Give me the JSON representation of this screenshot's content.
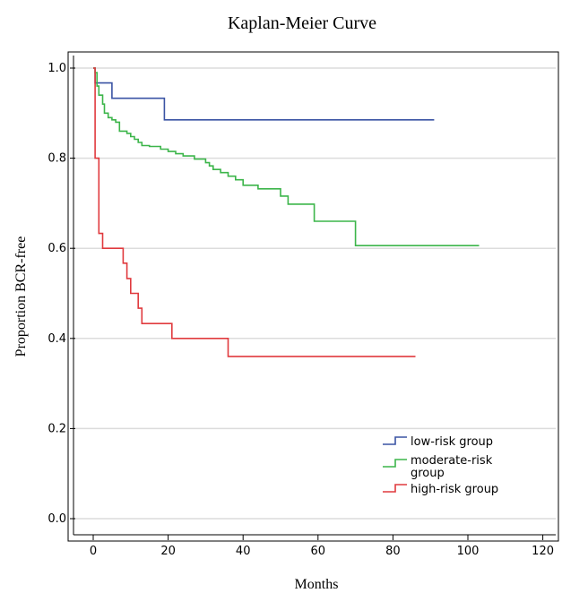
{
  "chart_data": {
    "type": "line",
    "title": "Kaplan-Meier Curve",
    "xlabel": "Months",
    "ylabel": "Proportion BCR-free",
    "xlim": [
      -5,
      125
    ],
    "ylim": [
      -0.05,
      1.05
    ],
    "xticks": [
      0,
      20,
      40,
      60,
      80,
      100,
      120
    ],
    "yticks": [
      "0.0",
      "0.2",
      "0.4",
      "0.6",
      "0.8",
      "1.0"
    ],
    "grid": "horizontal",
    "legend_position": "bottom-right",
    "series": [
      {
        "name": "low-risk group",
        "color": "#3a53a4",
        "points": [
          [
            0,
            1.0
          ],
          [
            0.5,
            0.967
          ],
          [
            5,
            0.933
          ],
          [
            19,
            0.885
          ],
          [
            91,
            0.885
          ]
        ]
      },
      {
        "name": "moderate-risk group",
        "color": "#3cb54a",
        "points": [
          [
            0,
            1.0
          ],
          [
            0.5,
            0.99
          ],
          [
            1,
            0.96
          ],
          [
            1.5,
            0.94
          ],
          [
            2.5,
            0.92
          ],
          [
            3,
            0.9
          ],
          [
            4,
            0.89
          ],
          [
            5,
            0.885
          ],
          [
            6,
            0.88
          ],
          [
            7,
            0.86
          ],
          [
            9,
            0.855
          ],
          [
            10,
            0.848
          ],
          [
            11,
            0.842
          ],
          [
            12,
            0.835
          ],
          [
            13,
            0.828
          ],
          [
            15,
            0.826
          ],
          [
            18,
            0.82
          ],
          [
            20,
            0.815
          ],
          [
            22,
            0.81
          ],
          [
            24,
            0.805
          ],
          [
            27,
            0.798
          ],
          [
            30,
            0.79
          ],
          [
            31,
            0.783
          ],
          [
            32,
            0.775
          ],
          [
            34,
            0.768
          ],
          [
            36,
            0.76
          ],
          [
            38,
            0.752
          ],
          [
            40,
            0.74
          ],
          [
            44,
            0.732
          ],
          [
            50,
            0.716
          ],
          [
            52,
            0.698
          ],
          [
            59,
            0.66
          ],
          [
            70,
            0.606
          ],
          [
            103,
            0.606
          ]
        ]
      },
      {
        "name": "high-risk group",
        "color": "#e03a3e",
        "points": [
          [
            0,
            1.0
          ],
          [
            0.5,
            0.8
          ],
          [
            1.5,
            0.633
          ],
          [
            2.5,
            0.6
          ],
          [
            8,
            0.567
          ],
          [
            9,
            0.533
          ],
          [
            10,
            0.5
          ],
          [
            12,
            0.467
          ],
          [
            13,
            0.433
          ],
          [
            21,
            0.4
          ],
          [
            36,
            0.36
          ],
          [
            86,
            0.36
          ]
        ]
      }
    ]
  }
}
